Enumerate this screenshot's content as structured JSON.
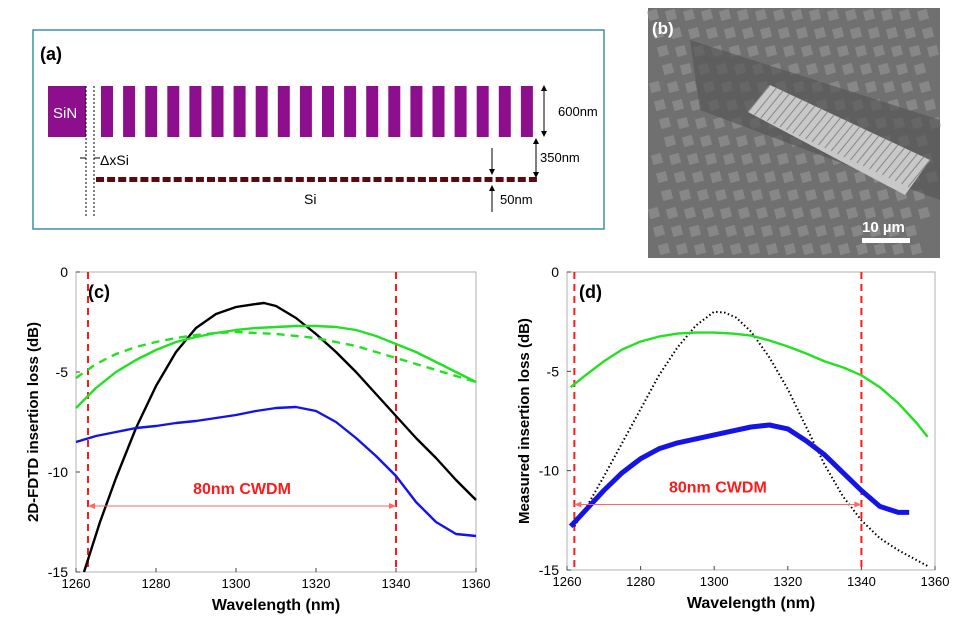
{
  "figure": {
    "panel_a": {
      "label": "(a)",
      "sin_label": "SiN",
      "si_label": "Si",
      "dim_height": "600nm",
      "dim_gap": "350nm",
      "dim_si": "50nm",
      "offset_label": "ΔxSi",
      "fill_color": "#8e0f8e",
      "si_color": "#5a0a0a"
    },
    "panel_b": {
      "label": "(b)",
      "scale_text": "10 µm"
    }
  },
  "chart_data": [
    {
      "panel": "(c)",
      "type": "line",
      "xlabel": "Wavelength (nm)",
      "ylabel": "2D-FDTD insertion loss (dB)",
      "xlim": [
        1260,
        1360
      ],
      "ylim": [
        -15,
        0
      ],
      "xticks": [
        "1260",
        "1280",
        "1300",
        "1320",
        "1340",
        "1360"
      ],
      "yticks": [
        "0",
        "-5",
        "-10",
        "-15"
      ],
      "annotation": "80nm CWDM",
      "annotation_range": [
        1263,
        1340
      ],
      "vlines": [
        1263,
        1340
      ],
      "series": [
        {
          "color": "#000000",
          "style": "solid",
          "x": [
            1262,
            1266,
            1270,
            1275,
            1280,
            1285,
            1290,
            1295,
            1300,
            1305,
            1307,
            1310,
            1315,
            1320,
            1325,
            1330,
            1335,
            1340,
            1345,
            1350,
            1355,
            1360
          ],
          "y": [
            -15,
            -12.5,
            -10.3,
            -7.8,
            -5.7,
            -4.0,
            -2.8,
            -2.1,
            -1.75,
            -1.6,
            -1.55,
            -1.7,
            -2.3,
            -3.1,
            -4.0,
            -5.0,
            -6.1,
            -7.2,
            -8.3,
            -9.3,
            -10.4,
            -11.4
          ]
        },
        {
          "color": "#22e022",
          "style": "solid",
          "x": [
            1260,
            1265,
            1270,
            1275,
            1280,
            1285,
            1290,
            1295,
            1300,
            1305,
            1310,
            1315,
            1320,
            1325,
            1330,
            1335,
            1340,
            1345,
            1350,
            1355,
            1360
          ],
          "y": [
            -6.8,
            -5.8,
            -5.0,
            -4.4,
            -3.9,
            -3.5,
            -3.25,
            -3.05,
            -2.9,
            -2.8,
            -2.75,
            -2.7,
            -2.7,
            -2.75,
            -2.9,
            -3.2,
            -3.6,
            -4.0,
            -4.5,
            -5.0,
            -5.5
          ]
        },
        {
          "color": "#22e022",
          "style": "dashed",
          "x": [
            1260,
            1265,
            1270,
            1275,
            1280,
            1285,
            1290,
            1295,
            1300,
            1305,
            1310,
            1315,
            1320,
            1325,
            1330,
            1335,
            1340,
            1345,
            1350,
            1355,
            1360
          ],
          "y": [
            -5.3,
            -4.6,
            -4.1,
            -3.75,
            -3.5,
            -3.3,
            -3.15,
            -3.05,
            -3.0,
            -3.05,
            -3.1,
            -3.2,
            -3.3,
            -3.5,
            -3.7,
            -4.0,
            -4.3,
            -4.6,
            -4.9,
            -5.2,
            -5.5
          ]
        },
        {
          "color": "#1414e6",
          "style": "solid",
          "x": [
            1260,
            1265,
            1270,
            1275,
            1280,
            1285,
            1290,
            1295,
            1300,
            1305,
            1310,
            1315,
            1320,
            1325,
            1330,
            1335,
            1340,
            1345,
            1350,
            1355,
            1360
          ],
          "y": [
            -8.5,
            -8.2,
            -8.0,
            -7.8,
            -7.7,
            -7.55,
            -7.45,
            -7.3,
            -7.15,
            -6.95,
            -6.8,
            -6.75,
            -6.95,
            -7.5,
            -8.3,
            -9.2,
            -10.2,
            -11.5,
            -12.5,
            -13.1,
            -13.2
          ]
        }
      ]
    },
    {
      "panel": "(d)",
      "type": "line",
      "xlabel": "Wavelength (nm)",
      "ylabel": "Measured insertion loss (dB)",
      "xlim": [
        1260,
        1360
      ],
      "ylim": [
        -15,
        0
      ],
      "xticks": [
        "1260",
        "1280",
        "1300",
        "1320",
        "1340",
        "1360"
      ],
      "yticks": [
        "0",
        "-5",
        "-10",
        "-15"
      ],
      "annotation": "80nm CWDM",
      "annotation_range": [
        1262,
        1340
      ],
      "vlines": [
        1262,
        1340
      ],
      "series": [
        {
          "color": "#000000",
          "style": "dotted",
          "x": [
            1262,
            1266,
            1270,
            1275,
            1280,
            1285,
            1290,
            1295,
            1300,
            1303,
            1306,
            1310,
            1315,
            1320,
            1325,
            1330,
            1335,
            1340,
            1345,
            1350,
            1355,
            1358
          ],
          "y": [
            -12.8,
            -11.6,
            -10.3,
            -8.6,
            -6.9,
            -5.2,
            -3.8,
            -2.7,
            -2.0,
            -2.05,
            -2.3,
            -3.0,
            -4.3,
            -5.9,
            -7.8,
            -9.7,
            -11.3,
            -12.5,
            -13.4,
            -14.0,
            -14.5,
            -14.8
          ]
        },
        {
          "color": "#22e022",
          "style": "solid",
          "x": [
            1261,
            1265,
            1270,
            1275,
            1280,
            1285,
            1290,
            1295,
            1300,
            1305,
            1310,
            1315,
            1320,
            1325,
            1330,
            1335,
            1340,
            1345,
            1350,
            1355,
            1358
          ],
          "y": [
            -5.8,
            -5.2,
            -4.5,
            -3.9,
            -3.5,
            -3.25,
            -3.1,
            -3.05,
            -3.05,
            -3.1,
            -3.2,
            -3.45,
            -3.75,
            -4.1,
            -4.5,
            -4.8,
            -5.2,
            -5.8,
            -6.6,
            -7.6,
            -8.3
          ]
        },
        {
          "color": "#1414e6",
          "style": "thick",
          "x": [
            1261,
            1265,
            1270,
            1275,
            1280,
            1285,
            1290,
            1295,
            1300,
            1305,
            1310,
            1315,
            1320,
            1325,
            1330,
            1335,
            1340,
            1345,
            1350,
            1353
          ],
          "y": [
            -12.8,
            -12.0,
            -11.0,
            -10.1,
            -9.4,
            -8.9,
            -8.6,
            -8.4,
            -8.2,
            -8.0,
            -7.8,
            -7.7,
            -7.9,
            -8.5,
            -9.2,
            -10.1,
            -11.0,
            -11.8,
            -12.1,
            -12.1
          ]
        }
      ]
    }
  ]
}
